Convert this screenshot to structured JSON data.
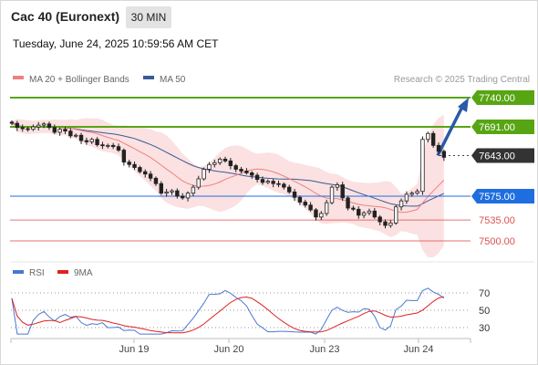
{
  "header": {
    "title": "Cac 40 (Euronext)",
    "timeframe": "30 MIN",
    "datetime": "Tuesday, June 24, 2025 10:59:56 AM CET"
  },
  "chart_data": [
    {
      "type": "candlestick",
      "title": "Cac 40 (Euronext)",
      "legend": [
        {
          "label": "MA 20 + Bollinger Bands",
          "color": "#f08080"
        },
        {
          "label": "MA 50",
          "color": "#3a5a98"
        }
      ],
      "watermark": "Research © 2025 Trading Central",
      "x_ticks": [
        "Jun 19",
        "Jun 20",
        "Jun 23",
        "Jun 24"
      ],
      "levels": [
        {
          "value": 7740.0,
          "label": "7740.00",
          "kind": "target",
          "color": "#58a514"
        },
        {
          "value": 7691.0,
          "label": "7691.00",
          "kind": "resistance",
          "color": "#58a514"
        },
        {
          "value": 7643.0,
          "label": "7643.00",
          "kind": "last",
          "color": "#333333"
        },
        {
          "value": 7575.0,
          "label": "7575.00",
          "kind": "pivot",
          "color": "#1f6ee0"
        },
        {
          "value": 7535.0,
          "label": "7535.00",
          "kind": "support",
          "color": "#e05050"
        },
        {
          "value": 7500.0,
          "label": "7500.00",
          "kind": "support",
          "color": "#e05050"
        }
      ],
      "close_series": [
        7697,
        7690,
        7688,
        7687,
        7691,
        7694,
        7696,
        7690,
        7682,
        7687,
        7684,
        7676,
        7677,
        7668,
        7666,
        7670,
        7661,
        7660,
        7660,
        7658,
        7652,
        7632,
        7628,
        7623,
        7616,
        7612,
        7605,
        7596,
        7580,
        7582,
        7584,
        7575,
        7572,
        7580,
        7590,
        7604,
        7620,
        7628,
        7631,
        7637,
        7634,
        7626,
        7620,
        7617,
        7614,
        7610,
        7603,
        7598,
        7600,
        7596,
        7595,
        7590,
        7582,
        7573,
        7565,
        7560,
        7552,
        7540,
        7546,
        7564,
        7590,
        7594,
        7572,
        7555,
        7553,
        7543,
        7547,
        7550,
        7540,
        7532,
        7526,
        7530,
        7557,
        7567,
        7578,
        7580,
        7583,
        7670,
        7680,
        7660,
        7650,
        7640
      ]
    },
    {
      "type": "line",
      "title": "RSI",
      "legend": [
        {
          "label": "RSI",
          "color": "#4a78d0"
        },
        {
          "label": "9MA",
          "color": "#e02020"
        }
      ],
      "y_ticks": [
        70,
        50,
        30
      ],
      "ylim": [
        20,
        80
      ]
    }
  ]
}
